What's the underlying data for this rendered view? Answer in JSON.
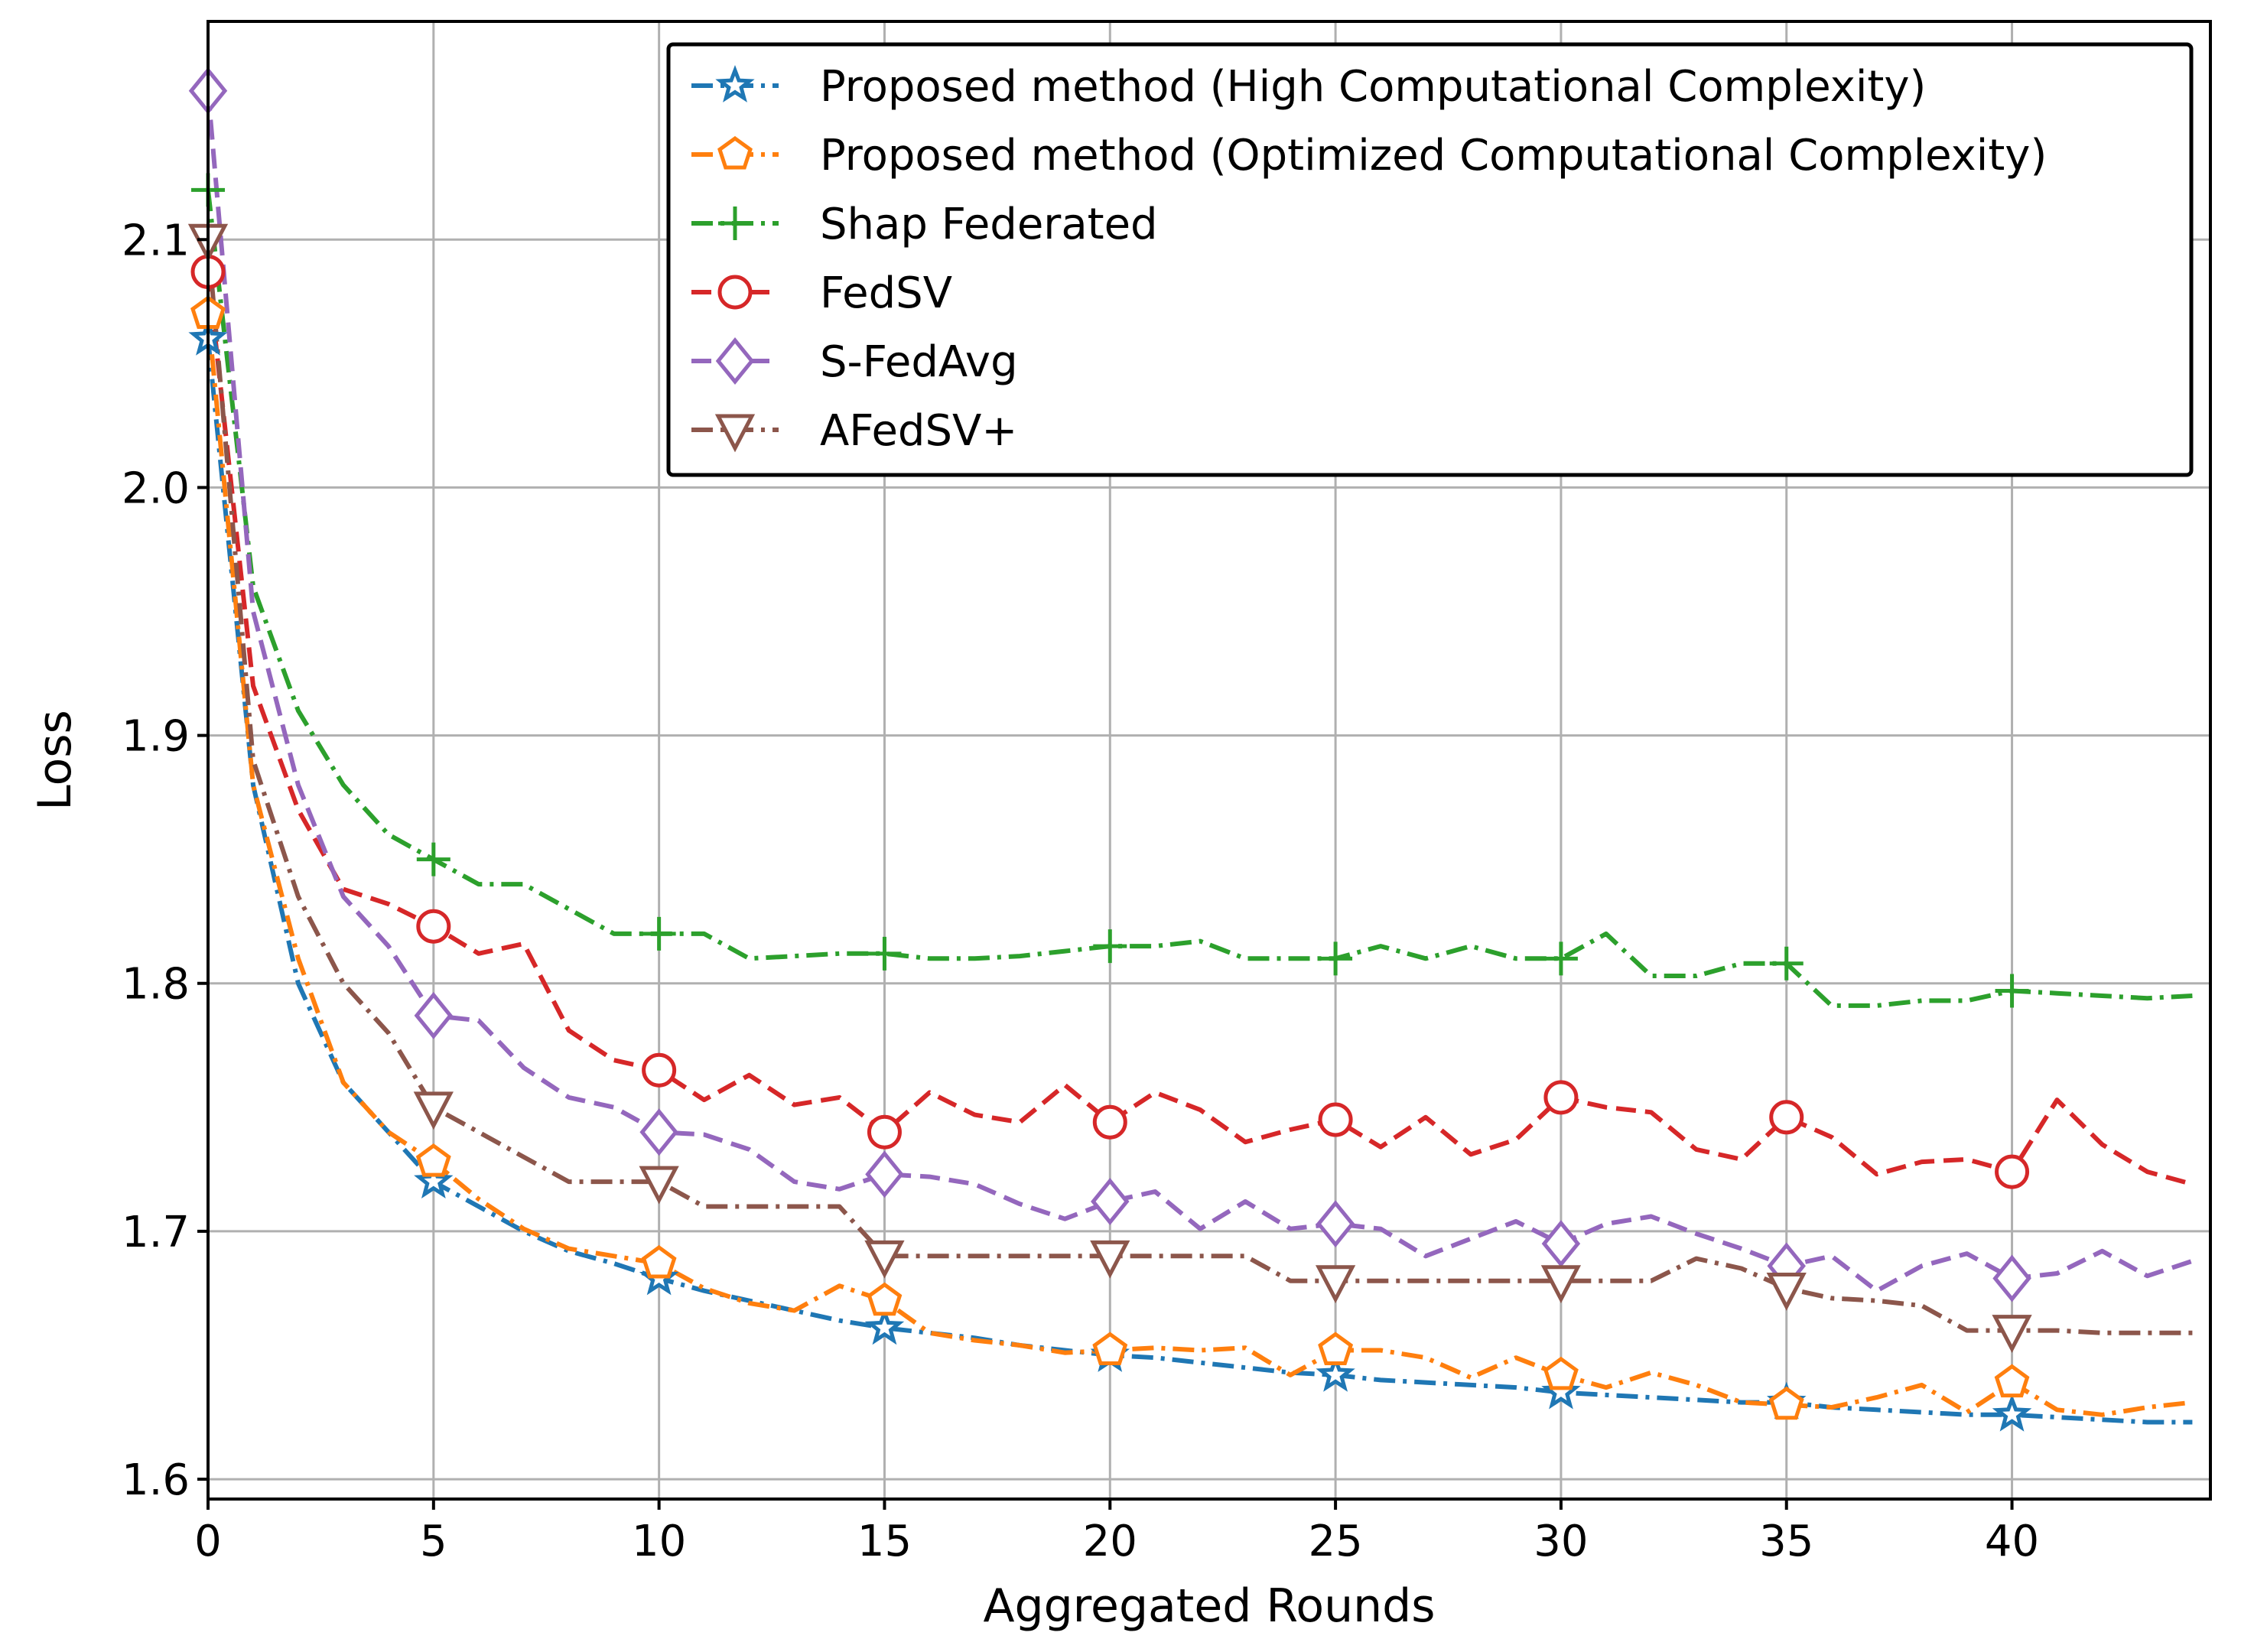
{
  "chart_data": {
    "type": "line",
    "title": "",
    "xlabel": "Aggregated Rounds",
    "ylabel": "Loss",
    "xlim": [
      0,
      44.4
    ],
    "ylim": [
      1.592,
      2.188
    ],
    "xticks": [
      0,
      5,
      10,
      15,
      20,
      25,
      30,
      35,
      40
    ],
    "yticks": [
      1.6,
      1.7,
      1.8,
      1.9,
      2.0,
      2.1
    ],
    "xtick_labels": [
      "0",
      "5",
      "10",
      "15",
      "20",
      "25",
      "30",
      "35",
      "40"
    ],
    "ytick_labels": [
      "1.6",
      "1.7",
      "1.8",
      "1.9",
      "2.0",
      "2.1"
    ],
    "grid": true,
    "legend_position": "top-right",
    "marker_every": 5,
    "x": [
      0,
      1,
      2,
      3,
      4,
      5,
      6,
      7,
      8,
      9,
      10,
      11,
      12,
      13,
      14,
      15,
      16,
      17,
      18,
      19,
      20,
      21,
      22,
      23,
      24,
      25,
      26,
      27,
      28,
      29,
      30,
      31,
      32,
      33,
      34,
      35,
      36,
      37,
      38,
      39,
      40,
      41,
      42,
      43,
      44
    ],
    "series": [
      {
        "name": "Proposed method (High Computational Complexity)",
        "color": "#1f77b4",
        "marker": "star",
        "dash": "dashdot",
        "values": [
          2.06,
          1.88,
          1.8,
          1.76,
          1.74,
          1.72,
          1.71,
          1.7,
          1.692,
          1.687,
          1.681,
          1.676,
          1.672,
          1.668,
          1.664,
          1.661,
          1.659,
          1.657,
          1.654,
          1.652,
          1.65,
          1.649,
          1.647,
          1.645,
          1.643,
          1.642,
          1.64,
          1.639,
          1.638,
          1.637,
          1.635,
          1.634,
          1.633,
          1.632,
          1.631,
          1.631,
          1.629,
          1.628,
          1.627,
          1.626,
          1.626,
          1.625,
          1.624,
          1.623,
          1.623
        ]
      },
      {
        "name": "Proposed method (Optimized Computational Complexity)",
        "color": "#ff7f0e",
        "marker": "pentagon",
        "dash": "dashdot",
        "values": [
          2.07,
          1.88,
          1.81,
          1.76,
          1.74,
          1.728,
          1.713,
          1.701,
          1.693,
          1.69,
          1.687,
          1.677,
          1.671,
          1.668,
          1.678,
          1.672,
          1.659,
          1.656,
          1.654,
          1.651,
          1.652,
          1.653,
          1.652,
          1.653,
          1.642,
          1.652,
          1.652,
          1.649,
          1.641,
          1.649,
          1.642,
          1.637,
          1.643,
          1.638,
          1.631,
          1.63,
          1.629,
          1.633,
          1.638,
          1.627,
          1.639,
          1.628,
          1.626,
          1.629,
          1.631
        ]
      },
      {
        "name": "Shap Federated",
        "color": "#2ca02c",
        "marker": "plus",
        "dash": "dashdot",
        "values": [
          2.12,
          1.96,
          1.91,
          1.88,
          1.86,
          1.85,
          1.84,
          1.84,
          1.83,
          1.82,
          1.82,
          1.82,
          1.81,
          1.811,
          1.812,
          1.812,
          1.81,
          1.81,
          1.811,
          1.813,
          1.815,
          1.815,
          1.817,
          1.81,
          1.81,
          1.81,
          1.815,
          1.81,
          1.815,
          1.81,
          1.81,
          1.82,
          1.803,
          1.803,
          1.808,
          1.808,
          1.791,
          1.791,
          1.793,
          1.793,
          1.797,
          1.796,
          1.795,
          1.794,
          1.795
        ]
      },
      {
        "name": "FedSV",
        "color": "#d62728",
        "marker": "circle",
        "dash": "dashed",
        "values": [
          2.087,
          1.92,
          1.87,
          1.838,
          1.832,
          1.823,
          1.812,
          1.816,
          1.781,
          1.769,
          1.765,
          1.753,
          1.763,
          1.751,
          1.754,
          1.74,
          1.756,
          1.747,
          1.744,
          1.759,
          1.744,
          1.756,
          1.749,
          1.736,
          1.741,
          1.745,
          1.734,
          1.746,
          1.731,
          1.737,
          1.754,
          1.75,
          1.748,
          1.733,
          1.729,
          1.746,
          1.738,
          1.723,
          1.728,
          1.729,
          1.724,
          1.753,
          1.735,
          1.724,
          1.719
        ]
      },
      {
        "name": "S-FedAvg",
        "color": "#9467bd",
        "marker": "diamond",
        "dash": "dashed",
        "values": [
          2.16,
          1.95,
          1.88,
          1.835,
          1.815,
          1.787,
          1.785,
          1.766,
          1.754,
          1.75,
          1.74,
          1.739,
          1.733,
          1.72,
          1.717,
          1.723,
          1.722,
          1.719,
          1.711,
          1.705,
          1.712,
          1.716,
          1.701,
          1.712,
          1.701,
          1.703,
          1.701,
          1.69,
          1.697,
          1.704,
          1.695,
          1.703,
          1.706,
          1.699,
          1.693,
          1.686,
          1.69,
          1.676,
          1.686,
          1.691,
          1.681,
          1.683,
          1.692,
          1.682,
          1.688
        ]
      },
      {
        "name": "AFedSV+",
        "color": "#8c564b",
        "marker": "triangle-down",
        "dash": "dashdot",
        "values": [
          2.1,
          1.89,
          1.835,
          1.8,
          1.78,
          1.75,
          1.74,
          1.73,
          1.72,
          1.72,
          1.72,
          1.71,
          1.71,
          1.71,
          1.71,
          1.69,
          1.69,
          1.69,
          1.69,
          1.69,
          1.69,
          1.69,
          1.69,
          1.69,
          1.68,
          1.68,
          1.68,
          1.68,
          1.68,
          1.68,
          1.68,
          1.68,
          1.68,
          1.689,
          1.685,
          1.677,
          1.673,
          1.672,
          1.67,
          1.66,
          1.66,
          1.66,
          1.659,
          1.659,
          1.659
        ]
      }
    ]
  }
}
